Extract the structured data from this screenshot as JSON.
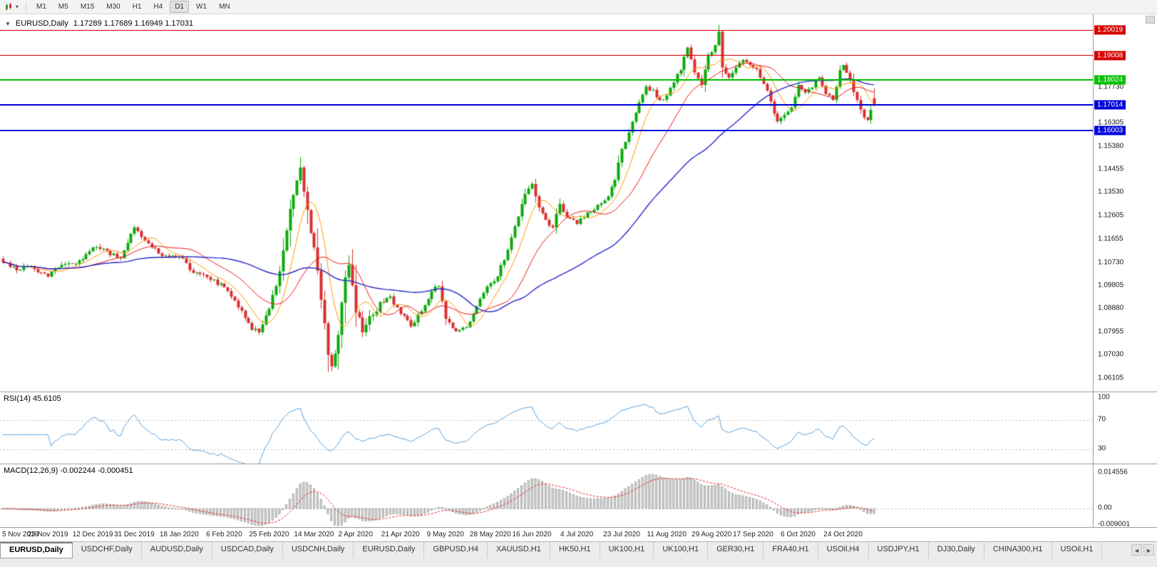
{
  "icons": {
    "collapse": "▼",
    "caret": "▾",
    "tab_left": "◄",
    "tab_right": "►"
  },
  "toolbar": {
    "timeframes": [
      "M1",
      "M5",
      "M15",
      "M30",
      "H1",
      "H4",
      "D1",
      "W1",
      "MN"
    ],
    "active_timeframe": "D1"
  },
  "chart_header": {
    "symbol": "EURUSD,Daily",
    "ohlc": "1.17289 1.17689 1.16949 1.17031"
  },
  "price_axis": {
    "labels": [
      "1.17730",
      "1.16305",
      "1.15380",
      "1.14455",
      "1.13530",
      "1.12605",
      "1.11655",
      "1.10730",
      "1.09805",
      "1.08880",
      "1.07955",
      "1.07030",
      "1.06105"
    ]
  },
  "levels": [
    {
      "label": "1.20019",
      "value": 1.20019,
      "color": "#d40000",
      "thickness": 1
    },
    {
      "label": "1.19008",
      "value": 1.19008,
      "color": "#d40000",
      "thickness": 1
    },
    {
      "label": "1.18024",
      "value": 1.18024,
      "color": "#00c000",
      "thickness": 2
    },
    {
      "label": "1.17014",
      "value": 1.17014,
      "color": "#0000d9",
      "thickness": 2
    },
    {
      "label": "1.16003",
      "value": 1.16003,
      "color": "#0000d9",
      "thickness": 2
    }
  ],
  "rsi_panel": {
    "title": "RSI(14) 45.6105",
    "current_value": "45.6105",
    "period": 14,
    "axis_labels": [
      "100",
      "70",
      "30"
    ],
    "axis_values": [
      100,
      70,
      30
    ],
    "overbought": 70,
    "oversold": 30,
    "line_color": "#5a9fd9"
  },
  "macd_panel": {
    "title": "MACD(12,26,9) -0.002244 -0.000451",
    "macd_value": "-0.002244",
    "signal_value": "-0.000451",
    "fast": 12,
    "slow": 26,
    "signal": 9,
    "axis_labels": [
      "0.014556",
      "0.00",
      "-0.009001"
    ],
    "axis_values": [
      0.014556,
      0,
      -0.009001
    ],
    "histogram_fill": "#cfcfcf",
    "histogram_stroke": "#8f8f8f",
    "signal_color": "#e02020"
  },
  "xaxis": {
    "labels": [
      "5 Nov 2019",
      "23 Nov 2019",
      "12 Dec 2019",
      "31 Dec 2019",
      "18 Jan 2020",
      "6 Feb 2020",
      "25 Feb 2020",
      "14 Mar 2020",
      "2 Apr 2020",
      "21 Apr 2020",
      "9 May 2020",
      "28 May 2020",
      "16 Jun 2020",
      "4 Jul 2020",
      "23 Jul 2020",
      "11 Aug 2020",
      "29 Aug 2020",
      "17 Sep 2020",
      "6 Oct 2020",
      "24 Oct 2020"
    ]
  },
  "tabs": {
    "items": [
      "EURUSD,Daily",
      "USDCHF,Daily",
      "AUDUSD,Daily",
      "USDCAD,Daily",
      "USDCNH,Daily",
      "EURUSD,Daily",
      "GBPUSD,H4",
      "XAUUSD,H1",
      "HK50,H1",
      "UK100,H1",
      "UK100,H1",
      "GER30,H1",
      "FRA40,H1",
      "USOil,H4",
      "USDJPY,H1",
      "DJ30,Daily",
      "CHINA300,H1",
      "USOil,H1"
    ],
    "active_index": 0
  },
  "chart_data": {
    "type": "candlestick",
    "symbol": "EURUSD",
    "timeframe": "Daily",
    "count": 253,
    "price_scale": {
      "min": 1.0555,
      "max": 1.2065
    },
    "up_color": "#0caa0c",
    "down_color": "#d93030",
    "last_candle": {
      "open": 1.17289,
      "high": 1.17689,
      "low": 1.16949,
      "close": 1.17031
    },
    "horizontal_levels": [
      1.20019,
      1.19008,
      1.18024,
      1.17014,
      1.16003
    ],
    "moving_averages": [
      {
        "period": 8,
        "color": "#ff9500",
        "width": 1
      },
      {
        "period": 20,
        "color": "#e81717",
        "width": 1
      },
      {
        "period": 50,
        "color": "#2828c8",
        "width": 1.4
      }
    ],
    "close_anchors": [
      [
        0,
        1.1072
      ],
      [
        4,
        1.104
      ],
      [
        8,
        1.1056
      ],
      [
        13,
        1.1015
      ],
      [
        17,
        1.1062
      ],
      [
        22,
        1.108
      ],
      [
        26,
        1.1132
      ],
      [
        30,
        1.1118
      ],
      [
        34,
        1.1088
      ],
      [
        38,
        1.1212
      ],
      [
        41,
        1.116
      ],
      [
        45,
        1.1108
      ],
      [
        51,
        1.1096
      ],
      [
        55,
        1.103
      ],
      [
        60,
        1.1002
      ],
      [
        64,
        1.0972
      ],
      [
        68,
        1.0892
      ],
      [
        72,
        1.0802
      ],
      [
        74,
        1.0792
      ],
      [
        77,
        1.0886
      ],
      [
        80,
        1.1036
      ],
      [
        83,
        1.1286
      ],
      [
        85,
        1.14
      ],
      [
        86,
        1.1452
      ],
      [
        88,
        1.1282
      ],
      [
        90,
        1.1132
      ],
      [
        92,
        1.0922
      ],
      [
        94,
        1.0702
      ],
      [
        95,
        1.0656
      ],
      [
        97,
        1.0782
      ],
      [
        99,
        1.1012
      ],
      [
        100,
        1.1062
      ],
      [
        102,
        1.0872
      ],
      [
        104,
        1.0792
      ],
      [
        107,
        1.0862
      ],
      [
        110,
        1.0912
      ],
      [
        112,
        1.0936
      ],
      [
        115,
        1.0866
      ],
      [
        118,
        1.0816
      ],
      [
        121,
        1.0876
      ],
      [
        124,
        1.0956
      ],
      [
        126,
        1.0976
      ],
      [
        128,
        1.0846
      ],
      [
        131,
        1.0796
      ],
      [
        134,
        1.0812
      ],
      [
        137,
        1.0896
      ],
      [
        140,
        1.0976
      ],
      [
        143,
        1.1016
      ],
      [
        146,
        1.1122
      ],
      [
        149,
        1.1256
      ],
      [
        151,
        1.1346
      ],
      [
        153,
        1.1386
      ],
      [
        155,
        1.1292
      ],
      [
        157,
        1.1242
      ],
      [
        159,
        1.1212
      ],
      [
        161,
        1.1306
      ],
      [
        163,
        1.1252
      ],
      [
        166,
        1.1226
      ],
      [
        169,
        1.1272
      ],
      [
        172,
        1.1302
      ],
      [
        175,
        1.1336
      ],
      [
        177,
        1.1402
      ],
      [
        179,
        1.1526
      ],
      [
        181,
        1.1592
      ],
      [
        184,
        1.1712
      ],
      [
        186,
        1.1776
      ],
      [
        188,
        1.1762
      ],
      [
        190,
        1.1722
      ],
      [
        192,
        1.174
      ],
      [
        194,
        1.1792
      ],
      [
        196,
        1.1842
      ],
      [
        198,
        1.1932
      ],
      [
        200,
        1.1832
      ],
      [
        202,
        1.1782
      ],
      [
        204,
        1.1902
      ],
      [
        206,
        1.1942
      ],
      [
        207,
        1.1996
      ],
      [
        208,
        1.1852
      ],
      [
        210,
        1.1812
      ],
      [
        212,
        1.1852
      ],
      [
        214,
        1.1882
      ],
      [
        216,
        1.1862
      ],
      [
        218,
        1.1846
      ],
      [
        220,
        1.1786
      ],
      [
        222,
        1.1716
      ],
      [
        224,
        1.1636
      ],
      [
        226,
        1.1662
      ],
      [
        228,
        1.1692
      ],
      [
        230,
        1.1782
      ],
      [
        232,
        1.1752
      ],
      [
        234,
        1.1772
      ],
      [
        236,
        1.1812
      ],
      [
        238,
        1.1746
      ],
      [
        240,
        1.1722
      ],
      [
        242,
        1.1842
      ],
      [
        243,
        1.1862
      ],
      [
        245,
        1.1802
      ],
      [
        247,
        1.1722
      ],
      [
        249,
        1.1652
      ],
      [
        250,
        1.1642
      ],
      [
        251,
        1.1682
      ],
      [
        252,
        1.17031
      ]
    ]
  }
}
